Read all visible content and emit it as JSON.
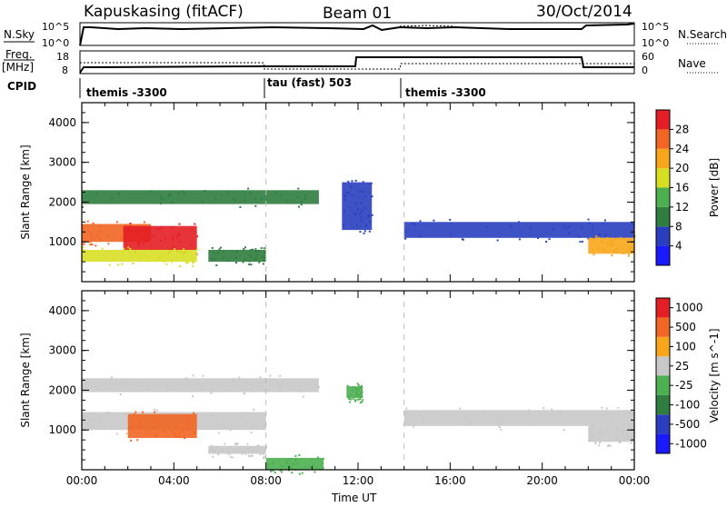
{
  "header": {
    "station": "Kapuskasing (fitACF)",
    "beam": "Beam 01",
    "date": "30/Oct/2014"
  },
  "top_panels": {
    "nsky": {
      "label": "N.Sky",
      "ticks": [
        "10^5",
        "10^0"
      ],
      "right_ticks": [
        "10^5",
        "10^0"
      ],
      "right_label": "N.Search"
    },
    "freq": {
      "label_top": "Freq.",
      "label_bottom": "[MHz]",
      "ticks": [
        "18",
        "8"
      ],
      "right_ticks": [
        "60",
        "0"
      ],
      "right_label": "Nave"
    },
    "cpid": {
      "label": "CPID",
      "segments": [
        {
          "text": "themis -3300",
          "start_hour": 0
        },
        {
          "text": "tau (fast) 503",
          "start_hour": 8
        },
        {
          "text": "themis -3300",
          "start_hour": 14
        }
      ]
    }
  },
  "chart_data": [
    {
      "type": "heatmap",
      "name": "power",
      "ylabel": "Slant Range [km]",
      "ylim": [
        0,
        4500
      ],
      "xlim": [
        0,
        24
      ],
      "yticks": [
        1000,
        2000,
        3000,
        4000
      ],
      "colorbar": {
        "label": "Power [dB]",
        "ticks": [
          "4",
          "8",
          "12",
          "16",
          "20",
          "24",
          "28"
        ],
        "colors": [
          "#1a1aff",
          "#2a3fbf",
          "#2f7d3f",
          "#4caf50",
          "#d7df23",
          "#f7a61c",
          "#f26522",
          "#e31e24"
        ]
      },
      "bands": [
        {
          "t0": 0.0,
          "t1": 10.3,
          "r0": 1950,
          "r1": 2300,
          "color": "#2f7d3f"
        },
        {
          "t0": 0.0,
          "t1": 3.0,
          "r0": 1000,
          "r1": 1450,
          "color": "#f26522"
        },
        {
          "t0": 1.8,
          "t1": 5.0,
          "r0": 800,
          "r1": 1400,
          "color": "#e31e24"
        },
        {
          "t0": 0.0,
          "t1": 5.0,
          "r0": 500,
          "r1": 800,
          "color": "#d7df23"
        },
        {
          "t0": 5.5,
          "t1": 8.0,
          "r0": 500,
          "r1": 800,
          "color": "#2f7d3f"
        },
        {
          "t0": 14.0,
          "t1": 24.0,
          "r0": 1100,
          "r1": 1500,
          "color": "#2a3fbf"
        },
        {
          "t0": 22.0,
          "t1": 24.0,
          "r0": 700,
          "r1": 1100,
          "color": "#f7a61c"
        },
        {
          "t0": 11.3,
          "t1": 12.6,
          "r0": 1300,
          "r1": 2500,
          "color": "#2a3fbf"
        }
      ]
    },
    {
      "type": "heatmap",
      "name": "velocity",
      "ylabel": "Slant Range [km]",
      "xlabel": "Time UT",
      "ylim": [
        0,
        4500
      ],
      "xlim": [
        0,
        24
      ],
      "yticks": [
        1000,
        2000,
        3000,
        4000
      ],
      "xticks": [
        "00:00",
        "04:00",
        "08:00",
        "12:00",
        "16:00",
        "20:00",
        "00:00"
      ],
      "colorbar": {
        "label": "Velocity [m s^-1]",
        "ticks": [
          "1000",
          "500",
          "100",
          "25",
          "-25",
          "-100",
          "-500",
          "-1000"
        ],
        "colors": [
          "#1a1aff",
          "#2a3fbf",
          "#2f7d3f",
          "#4caf50",
          "#c8c8c8",
          "#f7a61c",
          "#f26522",
          "#e31e24"
        ]
      },
      "bands": [
        {
          "t0": 0.0,
          "t1": 10.3,
          "r0": 1950,
          "r1": 2300,
          "color": "#c8c8c8"
        },
        {
          "t0": 0.0,
          "t1": 8.0,
          "r0": 1000,
          "r1": 1450,
          "color": "#c8c8c8"
        },
        {
          "t0": 2.0,
          "t1": 5.0,
          "r0": 800,
          "r1": 1400,
          "color": "#f26522"
        },
        {
          "t0": 14.0,
          "t1": 24.0,
          "r0": 1100,
          "r1": 1500,
          "color": "#c8c8c8"
        },
        {
          "t0": 22.0,
          "t1": 24.0,
          "r0": 700,
          "r1": 1100,
          "color": "#c8c8c8"
        },
        {
          "t0": 5.5,
          "t1": 8.0,
          "r0": 400,
          "r1": 600,
          "color": "#c8c8c8"
        },
        {
          "t0": 8.0,
          "t1": 10.5,
          "r0": 0,
          "r1": 300,
          "color": "#4caf50"
        },
        {
          "t0": 11.5,
          "t1": 12.2,
          "r0": 1800,
          "r1": 2100,
          "color": "#4caf50"
        }
      ]
    }
  ]
}
